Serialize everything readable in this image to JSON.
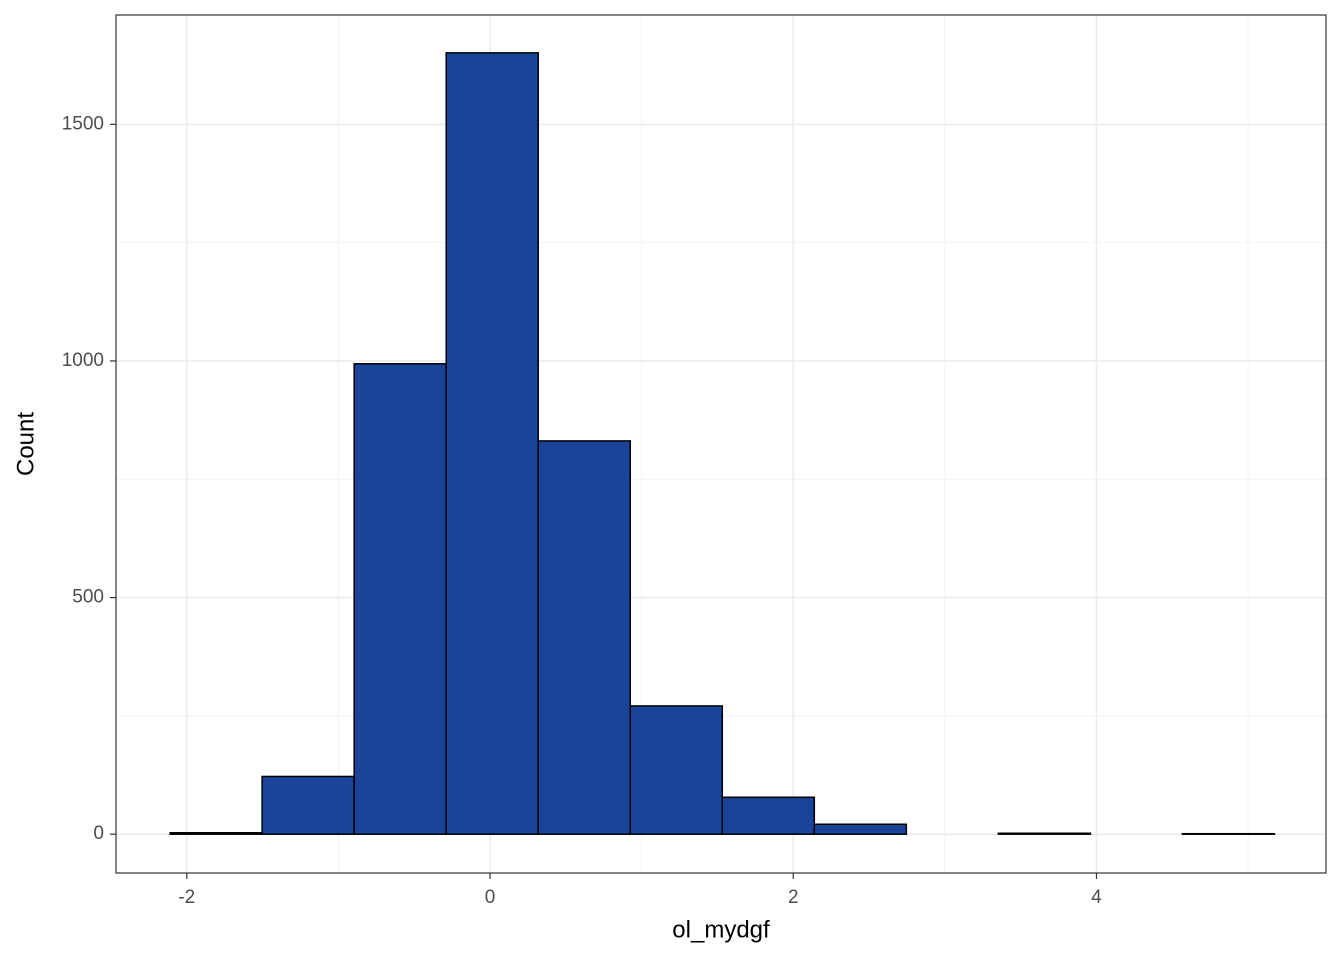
{
  "chart_data": {
    "type": "histogram",
    "x_label": "ol_mydgf",
    "y_label": "Count",
    "bins": [
      -2.11,
      -1.503,
      -0.896,
      -0.289,
      0.318,
      0.925,
      1.532,
      2.139,
      2.746,
      3.353,
      3.96,
      4.567,
      5.174
    ],
    "values": [
      3,
      122,
      994,
      1651,
      831,
      271,
      78,
      21,
      0,
      2,
      0,
      1
    ],
    "color": "#1a4499",
    "xlim": [
      -2.467,
      5.514
    ],
    "ylim": [
      -82,
      1731
    ],
    "xticks": [
      -2,
      0,
      2,
      4
    ],
    "yticks": [
      0,
      500,
      1000,
      1500
    ],
    "grid": true
  }
}
